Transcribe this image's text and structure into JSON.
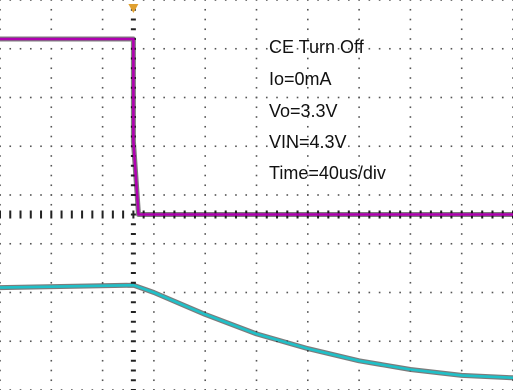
{
  "chart_data": {
    "type": "line",
    "title": "",
    "xlabel": "",
    "ylabel": "",
    "xlim": [
      0,
      10
    ],
    "ylim": [
      0,
      8
    ],
    "grid": true,
    "grid_style": "dotted",
    "trigger_marker_x": 2.6,
    "annotations": [
      "CE Turn Off",
      "Io=0mA",
      "Vo=3.3V",
      "VIN=4.3V",
      "Time=40us/div"
    ],
    "series": [
      {
        "color": "#b000b0",
        "x": [
          0,
          2.6,
          2.6,
          2.7,
          10
        ],
        "y": [
          7.2,
          7.2,
          5.1,
          3.6,
          3.6
        ]
      },
      {
        "color": "#20c0c8",
        "x": [
          0,
          2.6,
          3.0,
          4.0,
          5.0,
          6.0,
          7.0,
          8.0,
          9.0,
          10.0
        ],
        "y": [
          2.1,
          2.15,
          2.0,
          1.55,
          1.15,
          0.85,
          0.6,
          0.42,
          0.3,
          0.25
        ]
      }
    ]
  }
}
